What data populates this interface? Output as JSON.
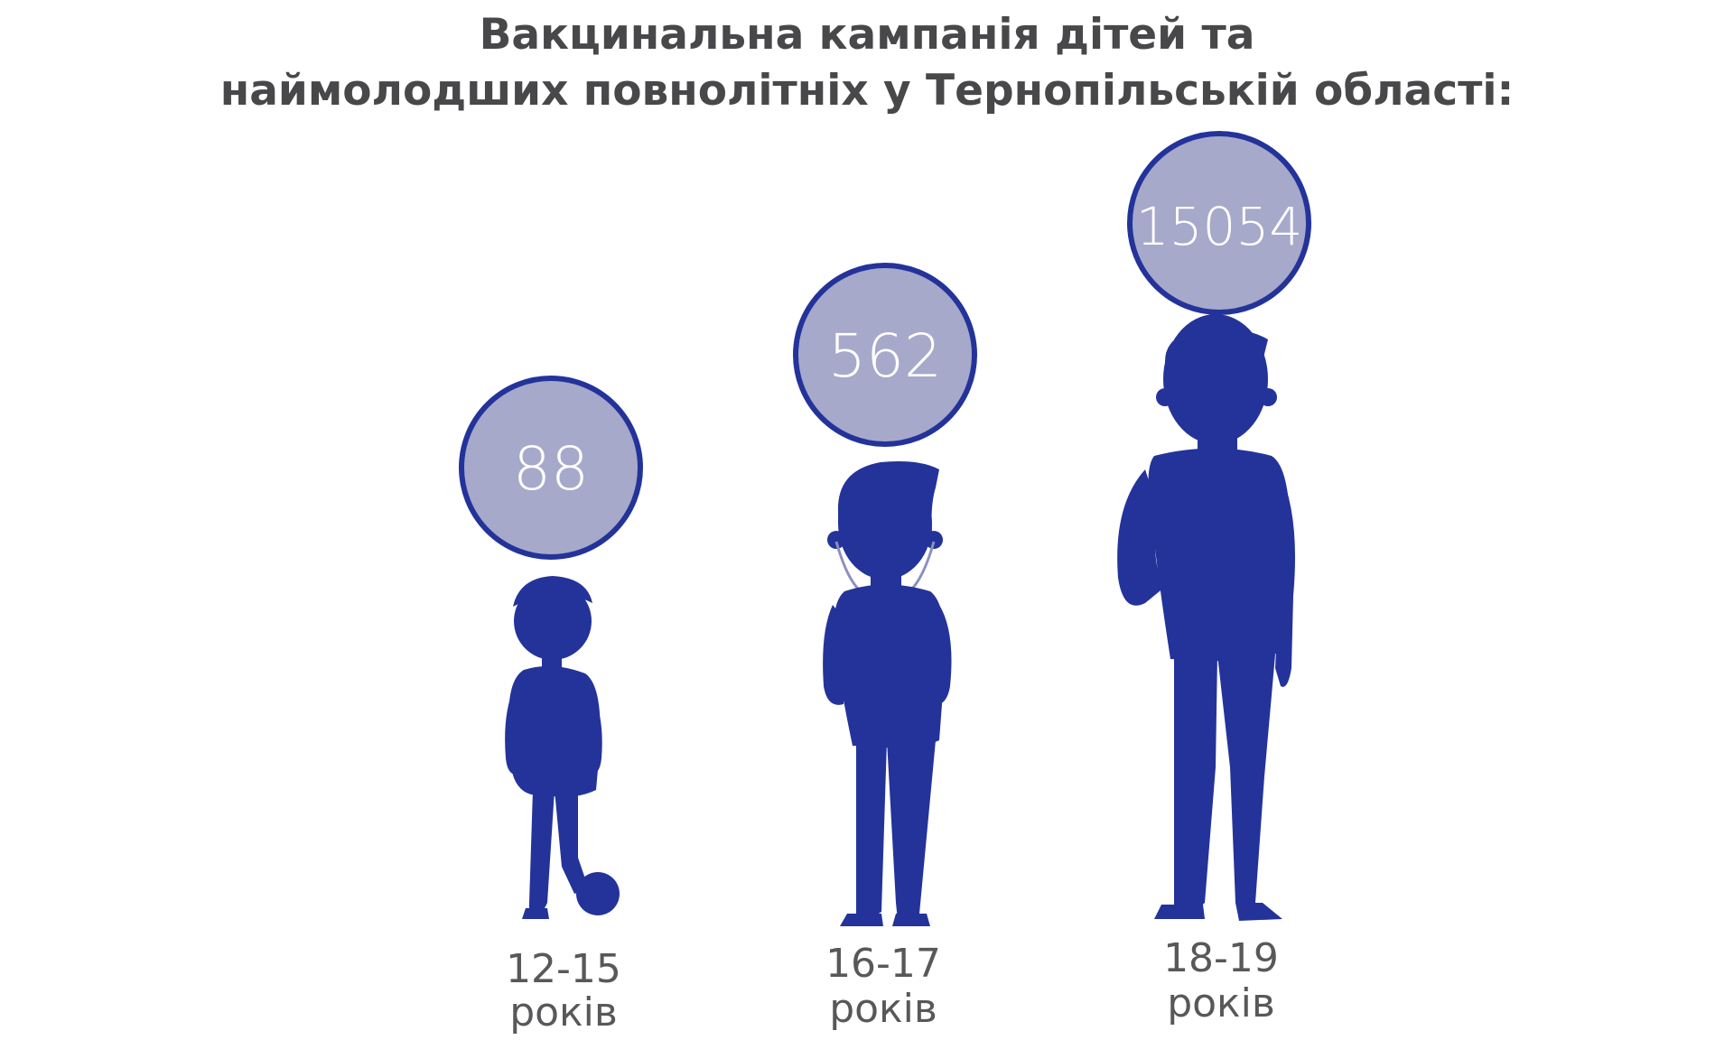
{
  "title": {
    "line1": "Вакцинальна кампанія дітей та",
    "line2": "наймолодших повнолітніх у Тернопільській області:"
  },
  "colors": {
    "figure": "#24339a",
    "bubble_fill": "#a6a9c9",
    "bubble_stroke": "#24339a",
    "title": "#48484a",
    "label": "#58585a"
  },
  "chart_data": {
    "type": "bar",
    "categories": [
      "12-15 років",
      "16-17 років",
      "18-19 років"
    ],
    "values": [
      88,
      562,
      15054
    ],
    "groups": [
      {
        "value": "88",
        "age": "12-15",
        "unit": "років",
        "figure_icon": "child-with-ball-icon"
      },
      {
        "value": "562",
        "age": "16-17",
        "unit": "років",
        "figure_icon": "teen-with-headphones-icon"
      },
      {
        "value": "15054",
        "age": "18-19",
        "unit": "років",
        "figure_icon": "young-man-icon"
      }
    ]
  }
}
